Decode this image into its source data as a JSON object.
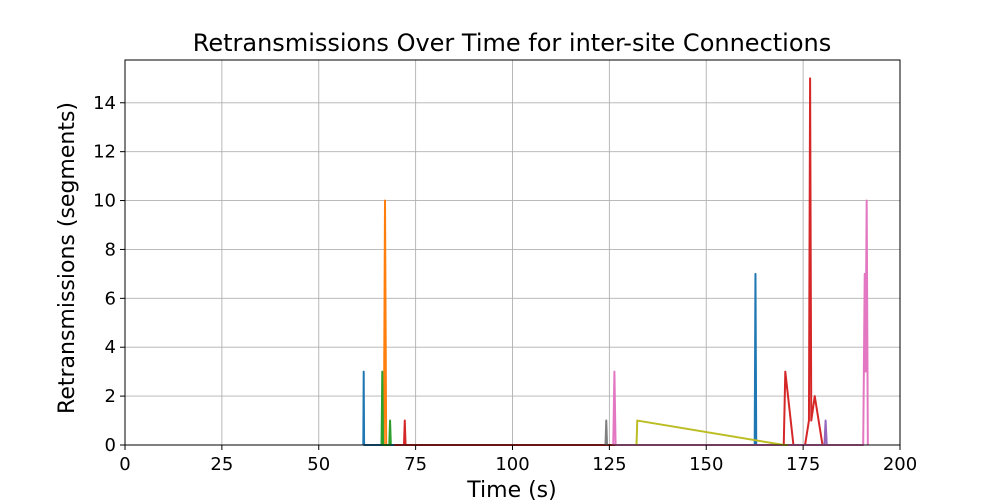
{
  "chart_data": {
    "type": "line",
    "title": "Retransmissions Over Time for inter-site Connections",
    "xlabel": "Time (s)",
    "ylabel": "Retransmissions (segments)",
    "xlim": [
      0,
      200
    ],
    "ylim": [
      0,
      15.75
    ],
    "xticks": [
      0,
      25,
      50,
      75,
      100,
      125,
      150,
      175,
      200
    ],
    "yticks": [
      0,
      2,
      4,
      6,
      8,
      10,
      12,
      14
    ],
    "grid": true,
    "legend": "none",
    "series": [
      {
        "color": "#1f77b4",
        "points": [
          [
            61.5,
            0
          ],
          [
            61.6,
            3
          ],
          [
            61.7,
            0
          ],
          [
            162.5,
            0
          ],
          [
            162.7,
            7
          ],
          [
            162.9,
            0
          ],
          [
            164,
            0
          ]
        ]
      },
      {
        "color": "#ff7f0e",
        "points": [
          [
            66.8,
            0
          ],
          [
            67.1,
            10
          ],
          [
            67.4,
            0
          ]
        ]
      },
      {
        "color": "#2ca02c",
        "points": [
          [
            66.2,
            0
          ],
          [
            66.4,
            3
          ],
          [
            66.6,
            0
          ],
          [
            68.2,
            0
          ],
          [
            68.4,
            1
          ],
          [
            68.6,
            0
          ]
        ]
      },
      {
        "color": "#d62728",
        "points": [
          [
            69.5,
            0
          ],
          [
            72,
            0
          ],
          [
            72.2,
            1
          ],
          [
            72.4,
            0
          ],
          [
            170,
            0
          ],
          [
            170.4,
            3
          ],
          [
            172.5,
            0
          ],
          [
            175.5,
            0
          ],
          [
            176.5,
            1
          ],
          [
            176.8,
            15
          ],
          [
            177.1,
            1
          ],
          [
            178,
            2
          ],
          [
            180,
            0
          ],
          [
            181,
            0
          ]
        ]
      },
      {
        "color": "#9467bd",
        "points": [
          [
            180.5,
            0
          ],
          [
            180.8,
            1
          ],
          [
            181.1,
            0
          ]
        ]
      },
      {
        "color": "#e377c2",
        "points": [
          [
            126,
            0
          ],
          [
            126.3,
            3
          ],
          [
            126.6,
            0
          ],
          [
            190.5,
            0
          ],
          [
            190.9,
            7
          ],
          [
            191.1,
            3
          ],
          [
            191.4,
            10
          ],
          [
            191.7,
            0
          ]
        ]
      },
      {
        "color": "#7f7f7f",
        "points": [
          [
            124,
            0
          ],
          [
            124.2,
            1
          ],
          [
            124.4,
            0
          ]
        ]
      },
      {
        "color": "#bcbd22",
        "points": [
          [
            132,
            0
          ],
          [
            132.2,
            1
          ],
          [
            170,
            0
          ],
          [
            171,
            0
          ]
        ]
      }
    ]
  }
}
